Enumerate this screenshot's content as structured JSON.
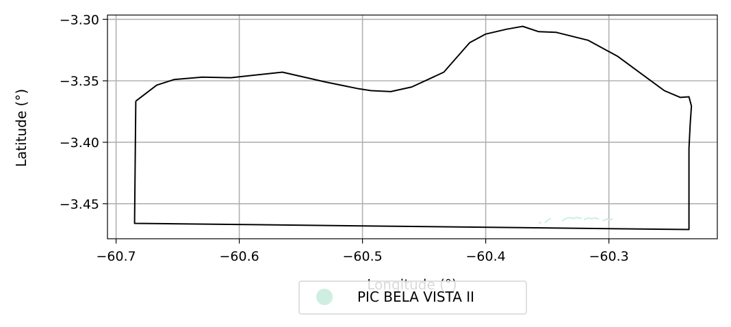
{
  "chart_data": {
    "type": "map",
    "xlabel": "Longitude (°)",
    "ylabel": "Latitude (°)",
    "xlim": [
      -60.707,
      -60.212
    ],
    "ylim": [
      -3.4785,
      -3.2965
    ],
    "xticks": [
      -60.7,
      -60.6,
      -60.5,
      -60.4,
      -60.3
    ],
    "xtick_labels": [
      "−60.7",
      "−60.6",
      "−60.5",
      "−60.4",
      "−60.3"
    ],
    "yticks": [
      -3.3,
      -3.35,
      -3.4,
      -3.45
    ],
    "ytick_labels": [
      "−3.30",
      "−3.35",
      "−3.40",
      "−3.45"
    ],
    "grid": true,
    "legend": {
      "placement": "bottom-center",
      "entries": [
        {
          "label": "PIC BELA VISTA  II",
          "color": "#cdeee0"
        }
      ]
    },
    "boundary_color": "#000000",
    "boundary": [
      [
        -60.684,
        -3.3665
      ],
      [
        -60.667,
        -3.3535
      ],
      [
        -60.653,
        -3.349
      ],
      [
        -60.63,
        -3.347
      ],
      [
        -60.607,
        -3.3475
      ],
      [
        -60.565,
        -3.343
      ],
      [
        -60.53,
        -3.351
      ],
      [
        -60.503,
        -3.3565
      ],
      [
        -60.493,
        -3.358
      ],
      [
        -60.477,
        -3.3588
      ],
      [
        -60.46,
        -3.355
      ],
      [
        -60.434,
        -3.343
      ],
      [
        -60.413,
        -3.319
      ],
      [
        -60.4,
        -3.312
      ],
      [
        -60.383,
        -3.308
      ],
      [
        -60.37,
        -3.3057
      ],
      [
        -60.357,
        -3.31
      ],
      [
        -60.343,
        -3.3105
      ],
      [
        -60.317,
        -3.317
      ],
      [
        -60.293,
        -3.33
      ],
      [
        -60.27,
        -3.347
      ],
      [
        -60.255,
        -3.358
      ],
      [
        -60.242,
        -3.3635
      ],
      [
        -60.235,
        -3.363
      ],
      [
        -60.233,
        -3.3705
      ],
      [
        -60.234,
        -3.385
      ],
      [
        -60.235,
        -3.405
      ],
      [
        -60.235,
        -3.471
      ],
      [
        -60.685,
        -3.466
      ],
      [
        -60.684,
        -3.3665
      ]
    ],
    "feature_fragments": [
      [
        [
          -60.352,
          -3.4655
        ],
        [
          -60.349,
          -3.463
        ],
        [
          -60.347,
          -3.462
        ]
      ],
      [
        [
          -60.338,
          -3.464
        ],
        [
          -60.335,
          -3.462
        ],
        [
          -60.332,
          -3.4612
        ],
        [
          -60.329,
          -3.462
        ],
        [
          -60.326,
          -3.4612
        ],
        [
          -60.322,
          -3.462
        ]
      ],
      [
        [
          -60.32,
          -3.463
        ],
        [
          -60.317,
          -3.4615
        ],
        [
          -60.314,
          -3.4622
        ],
        [
          -60.311,
          -3.4615
        ],
        [
          -60.308,
          -3.4625
        ]
      ],
      [
        [
          -60.305,
          -3.464
        ],
        [
          -60.302,
          -3.4625
        ],
        [
          -60.299,
          -3.463
        ],
        [
          -60.297,
          -3.4622
        ]
      ],
      [
        [
          -60.357,
          -3.465
        ],
        [
          -60.355,
          -3.466
        ]
      ]
    ]
  }
}
